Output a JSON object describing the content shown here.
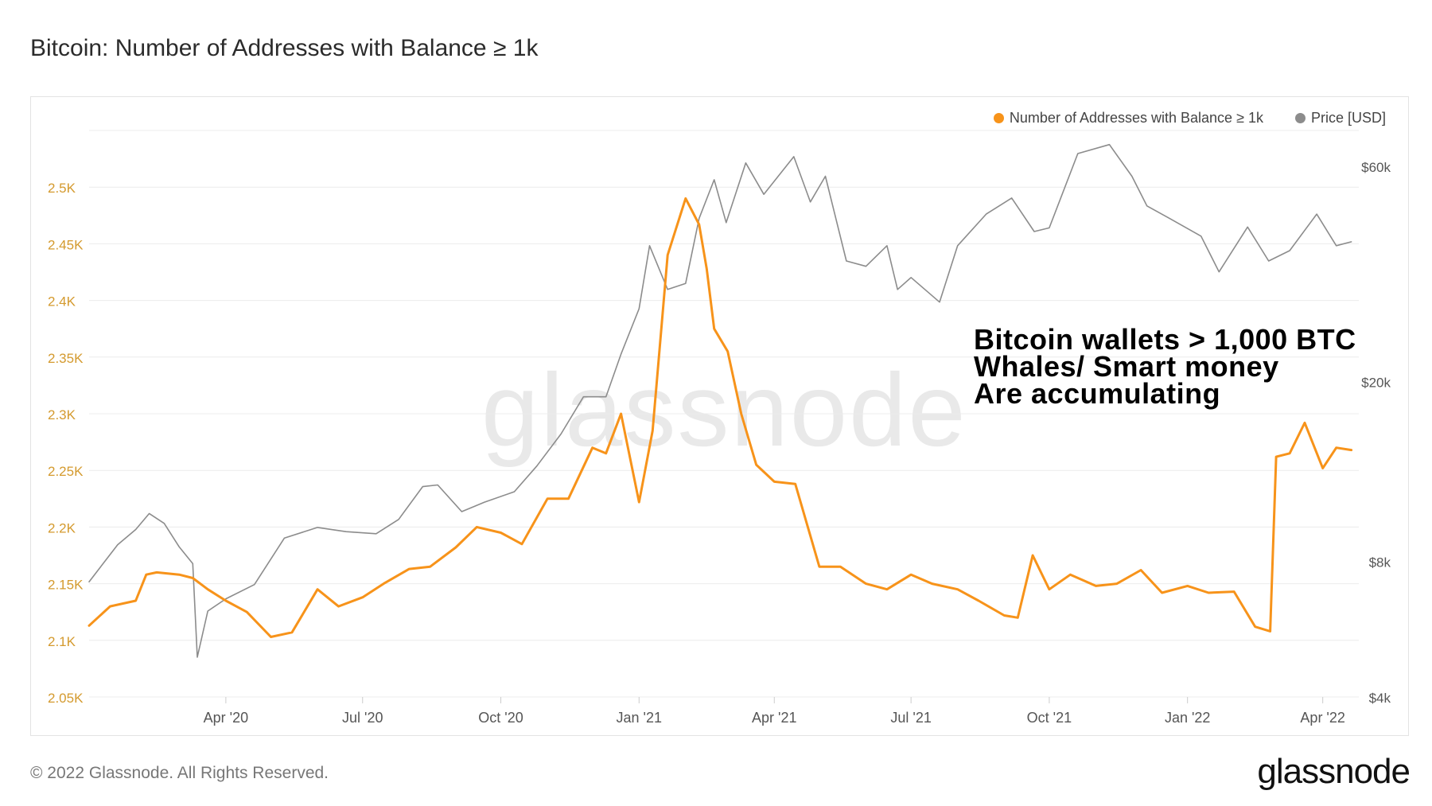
{
  "title": "Bitcoin: Number of Addresses with Balance ≥ 1k",
  "legend": {
    "series1": "Number of Addresses with Balance ≥ 1k",
    "series2": "Price [USD]"
  },
  "annotation": {
    "line1": "Bitcoin wallets > 1,000 BTC",
    "line2": "Whales/ Smart money",
    "line3": "Are accumulating"
  },
  "watermark": "glassnode",
  "footer": {
    "copyright": "© 2022 Glassnode. All Rights Reserved.",
    "logo": "glassnode"
  },
  "colors": {
    "addresses": "#f7931a",
    "price": "#8c8c8c",
    "left_axis_text": "#d49a2e",
    "grid": "#ececec"
  },
  "chart_data": {
    "type": "line",
    "x_tick_labels": [
      "Apr '20",
      "Jul '20",
      "Oct '20",
      "Jan '21",
      "Apr '21",
      "Jul '21",
      "Oct '21",
      "Jan '22",
      "Apr '22"
    ],
    "x_ticks": [
      "2020-04-01",
      "2020-07-01",
      "2020-10-01",
      "2021-01-01",
      "2021-04-01",
      "2021-07-01",
      "2021-10-01",
      "2022-01-01",
      "2022-04-01"
    ],
    "xlim": [
      "2020-01-01",
      "2022-04-25"
    ],
    "y_left": {
      "ticks": [
        2050,
        2100,
        2150,
        2200,
        2250,
        2300,
        2350,
        2400,
        2450,
        2500
      ],
      "tick_labels": [
        "2.05K",
        "2.1K",
        "2.15K",
        "2.2K",
        "2.25K",
        "2.3K",
        "2.35K",
        "2.4K",
        "2.45K",
        "2.5K"
      ],
      "ylim": [
        2050,
        2550
      ]
    },
    "y_right": {
      "scale": "log",
      "ticks": [
        4000,
        8000,
        20000,
        60000
      ],
      "tick_labels": [
        "$4k",
        "$8k",
        "$20k",
        "$60k"
      ],
      "ylim": [
        4000,
        72000
      ]
    },
    "grid": true,
    "legend_position": "top-right",
    "series": [
      {
        "name": "Number of Addresses with Balance ≥ 1k",
        "axis": "left",
        "x": [
          "2020-01-01",
          "2020-01-15",
          "2020-02-01",
          "2020-02-08",
          "2020-02-15",
          "2020-03-01",
          "2020-03-10",
          "2020-03-20",
          "2020-04-01",
          "2020-04-15",
          "2020-05-01",
          "2020-05-15",
          "2020-06-01",
          "2020-06-15",
          "2020-07-01",
          "2020-07-15",
          "2020-08-01",
          "2020-08-15",
          "2020-09-01",
          "2020-09-15",
          "2020-10-01",
          "2020-10-15",
          "2020-11-01",
          "2020-11-15",
          "2020-12-01",
          "2020-12-10",
          "2020-12-20",
          "2021-01-01",
          "2021-01-10",
          "2021-01-20",
          "2021-02-01",
          "2021-02-10",
          "2021-02-15",
          "2021-02-20",
          "2021-03-01",
          "2021-03-10",
          "2021-03-20",
          "2021-04-01",
          "2021-04-15",
          "2021-05-01",
          "2021-05-15",
          "2021-06-01",
          "2021-06-15",
          "2021-07-01",
          "2021-07-15",
          "2021-08-01",
          "2021-08-15",
          "2021-09-01",
          "2021-09-10",
          "2021-09-20",
          "2021-10-01",
          "2021-10-15",
          "2021-11-01",
          "2021-11-15",
          "2021-12-01",
          "2021-12-15",
          "2022-01-01",
          "2022-01-15",
          "2022-02-01",
          "2022-02-15",
          "2022-02-25",
          "2022-03-01",
          "2022-03-10",
          "2022-03-20",
          "2022-04-01",
          "2022-04-10",
          "2022-04-20"
        ],
        "values": [
          2113,
          2130,
          2135,
          2158,
          2160,
          2158,
          2155,
          2145,
          2135,
          2125,
          2103,
          2107,
          2145,
          2130,
          2138,
          2150,
          2163,
          2165,
          2182,
          2200,
          2195,
          2185,
          2225,
          2225,
          2270,
          2265,
          2300,
          2222,
          2285,
          2440,
          2490,
          2467,
          2428,
          2375,
          2355,
          2300,
          2255,
          2240,
          2238,
          2165,
          2165,
          2150,
          2145,
          2158,
          2150,
          2145,
          2135,
          2122,
          2120,
          2175,
          2145,
          2158,
          2148,
          2150,
          2162,
          2142,
          2148,
          2142,
          2143,
          2112,
          2108,
          2262,
          2265,
          2292,
          2252,
          2270,
          2268
        ]
      },
      {
        "name": "Price [USD]",
        "axis": "right",
        "x": [
          "2020-01-01",
          "2020-01-20",
          "2020-02-01",
          "2020-02-10",
          "2020-02-20",
          "2020-03-01",
          "2020-03-10",
          "2020-03-13",
          "2020-03-20",
          "2020-04-01",
          "2020-04-20",
          "2020-05-10",
          "2020-06-01",
          "2020-06-20",
          "2020-07-10",
          "2020-07-25",
          "2020-08-10",
          "2020-08-20",
          "2020-09-05",
          "2020-09-20",
          "2020-10-10",
          "2020-10-25",
          "2020-11-10",
          "2020-11-25",
          "2020-12-10",
          "2020-12-20",
          "2021-01-01",
          "2021-01-08",
          "2021-01-20",
          "2021-02-01",
          "2021-02-10",
          "2021-02-20",
          "2021-02-28",
          "2021-03-13",
          "2021-03-25",
          "2021-04-14",
          "2021-04-25",
          "2021-05-05",
          "2021-05-19",
          "2021-06-01",
          "2021-06-15",
          "2021-06-22",
          "2021-07-01",
          "2021-07-20",
          "2021-08-01",
          "2021-08-20",
          "2021-09-06",
          "2021-09-21",
          "2021-10-01",
          "2021-10-20",
          "2021-11-10",
          "2021-11-25",
          "2021-12-05",
          "2021-12-20",
          "2022-01-10",
          "2022-01-22",
          "2022-02-10",
          "2022-02-24",
          "2022-03-10",
          "2022-03-28",
          "2022-04-10",
          "2022-04-20"
        ],
        "values": [
          7200,
          8700,
          9400,
          10200,
          9700,
          8600,
          7900,
          4900,
          6200,
          6600,
          7100,
          9000,
          9500,
          9300,
          9200,
          9900,
          11700,
          11800,
          10300,
          10800,
          11400,
          13000,
          15300,
          18500,
          18500,
          23000,
          29000,
          40000,
          32000,
          33000,
          46000,
          56000,
          45000,
          61000,
          52000,
          63000,
          50000,
          57000,
          37000,
          36000,
          40000,
          32000,
          34000,
          30000,
          40000,
          47000,
          51000,
          43000,
          43800,
          64000,
          67000,
          57000,
          49000,
          46000,
          42000,
          35000,
          44000,
          37000,
          39000,
          47000,
          40000,
          40800
        ]
      }
    ]
  }
}
